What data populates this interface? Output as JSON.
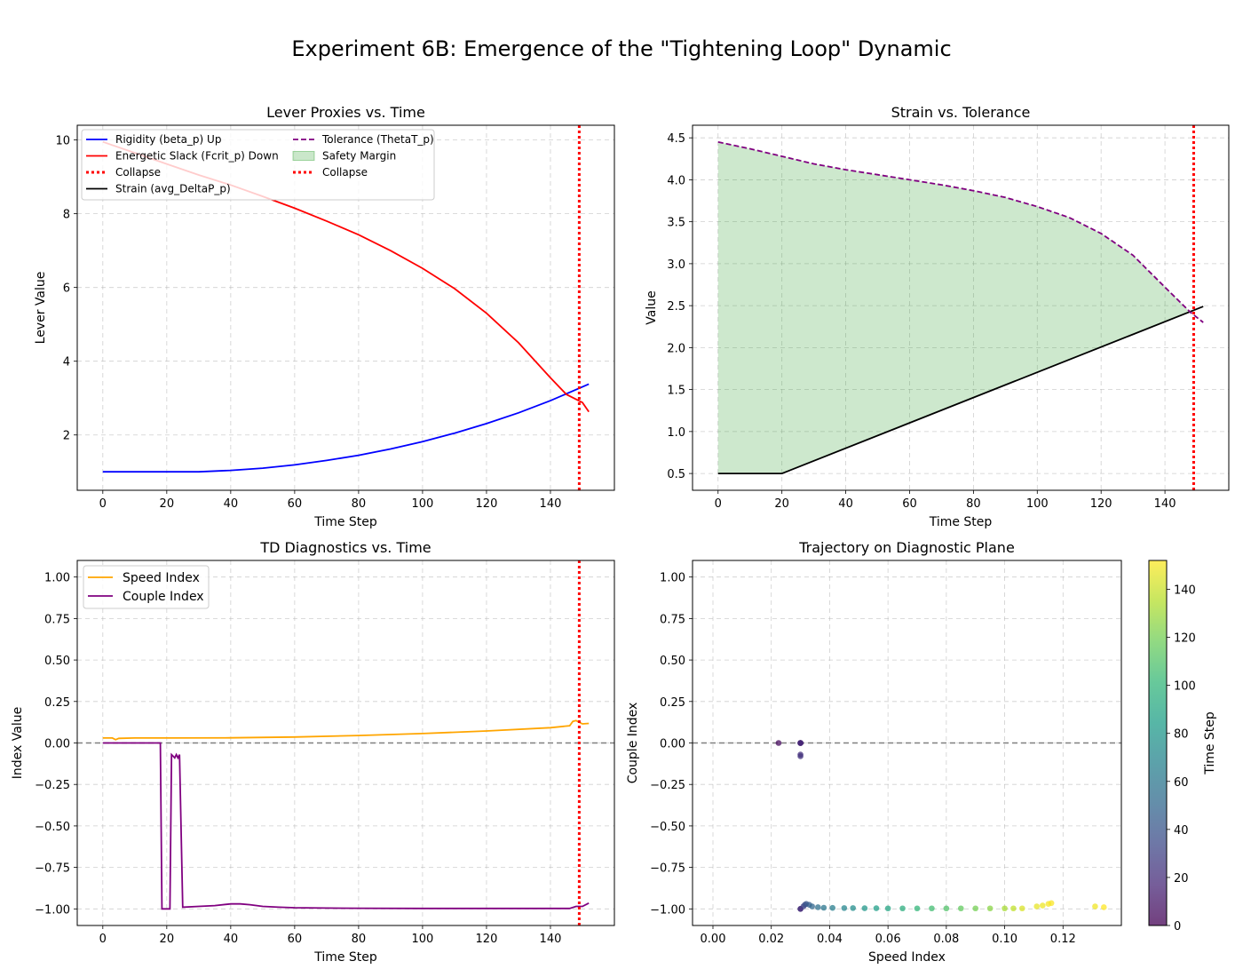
{
  "figure": {
    "title": "Experiment 6B: Emergence of the \"Tightening Loop\" Dynamic"
  },
  "colors": {
    "rigidity": "#0000ff",
    "slack": "#ff0000",
    "collapse": "#ff0000",
    "strain": "#000000",
    "tolerance": "#800080",
    "safety_margin": "#2ca02c",
    "speed": "#ffa500",
    "couple": "#800080",
    "zero_line": "#808080"
  },
  "chart_data": [
    {
      "id": "levers",
      "type": "line",
      "title": "Lever Proxies vs. Time",
      "xlabel": "Time Step",
      "ylabel": "Lever Value",
      "xlim": [
        -8,
        160
      ],
      "ylim": [
        0.5,
        10.4
      ],
      "xticks": [
        0,
        20,
        40,
        60,
        80,
        100,
        120,
        140
      ],
      "yticks": [
        2,
        4,
        6,
        8,
        10
      ],
      "grid": true,
      "legend_position": "top-left",
      "legend": [
        "Rigidity (beta_p) Up",
        "Energetic Slack (Fcrit_p) Down",
        "Collapse",
        "Strain (avg_DeltaP_p)",
        "Tolerance (ThetaT_p)",
        "Safety Margin",
        "Collapse"
      ],
      "collapse_x": 149,
      "series": [
        {
          "name": "Rigidity (beta_p) Up",
          "color_key": "rigidity",
          "x": [
            0,
            10,
            20,
            30,
            40,
            50,
            60,
            70,
            80,
            90,
            100,
            110,
            120,
            130,
            140,
            152
          ],
          "y": [
            1.0,
            1.0,
            1.0,
            1.0,
            1.04,
            1.1,
            1.19,
            1.31,
            1.45,
            1.62,
            1.82,
            2.05,
            2.31,
            2.6,
            2.93,
            3.38
          ]
        },
        {
          "name": "Energetic Slack (Fcrit_p) Down",
          "color_key": "slack",
          "x": [
            0,
            10,
            20,
            30,
            40,
            50,
            60,
            70,
            80,
            90,
            100,
            110,
            120,
            130,
            140,
            145,
            150,
            152
          ],
          "y": [
            9.95,
            9.65,
            9.35,
            9.05,
            8.78,
            8.47,
            8.15,
            7.8,
            7.43,
            7.0,
            6.52,
            5.97,
            5.3,
            4.5,
            3.55,
            3.1,
            2.88,
            2.63
          ]
        }
      ]
    },
    {
      "id": "strain",
      "type": "line",
      "title": "Strain vs. Tolerance",
      "xlabel": "Time Step",
      "ylabel": "Value",
      "xlim": [
        -8,
        160
      ],
      "ylim": [
        0.3,
        4.65
      ],
      "xticks": [
        0,
        20,
        40,
        60,
        80,
        100,
        120,
        140
      ],
      "yticks": [
        0.5,
        1.0,
        1.5,
        2.0,
        2.5,
        3.0,
        3.5,
        4.0,
        4.5
      ],
      "grid": true,
      "collapse_x": 149,
      "series": [
        {
          "name": "Strain (avg_DeltaP_p)",
          "color_key": "strain",
          "x": [
            0,
            20,
            152
          ],
          "y": [
            0.5,
            0.5,
            2.49
          ]
        },
        {
          "name": "Tolerance (ThetaT_p)",
          "color_key": "tolerance",
          "x": [
            0,
            10,
            20,
            30,
            40,
            50,
            60,
            70,
            80,
            90,
            100,
            110,
            120,
            130,
            140,
            148,
            152
          ],
          "y": [
            4.45,
            4.37,
            4.28,
            4.19,
            4.12,
            4.06,
            4.0,
            3.94,
            3.87,
            3.79,
            3.68,
            3.55,
            3.36,
            3.1,
            2.72,
            2.42,
            2.3
          ]
        }
      ]
    },
    {
      "id": "td",
      "type": "line",
      "title": "TD Diagnostics vs. Time",
      "xlabel": "Time Step",
      "ylabel": "Index Value",
      "xlim": [
        -8,
        160
      ],
      "ylim": [
        -1.1,
        1.1
      ],
      "xticks": [
        0,
        20,
        40,
        60,
        80,
        100,
        120,
        140
      ],
      "yticks": [
        -1.0,
        -0.75,
        -0.5,
        -0.25,
        0.0,
        0.25,
        0.5,
        0.75,
        1.0
      ],
      "grid": true,
      "legend_position": "top-left",
      "legend": [
        "Speed Index",
        "Couple Index"
      ],
      "collapse_x": 149,
      "series": [
        {
          "name": "Speed Index",
          "color_key": "speed",
          "x": [
            0,
            3,
            4,
            5,
            10,
            20,
            40,
            60,
            80,
            100,
            120,
            140,
            146,
            147,
            148,
            150,
            152
          ],
          "y": [
            0.03,
            0.03,
            0.02,
            0.028,
            0.03,
            0.03,
            0.031,
            0.036,
            0.045,
            0.057,
            0.072,
            0.092,
            0.104,
            0.13,
            0.135,
            0.115,
            0.118
          ]
        },
        {
          "name": "Couple Index",
          "color_key": "couple",
          "x": [
            0,
            17,
            18,
            18.5,
            20,
            21,
            21.5,
            22,
            22.5,
            23,
            23.5,
            24,
            25,
            30,
            35,
            40,
            43,
            46,
            50,
            55,
            60,
            70,
            80,
            100,
            120,
            146,
            148,
            150,
            152
          ],
          "y": [
            0.0,
            0.0,
            0.0,
            -1.0,
            -1.0,
            -1.0,
            -0.07,
            -0.08,
            -0.09,
            -0.07,
            -0.09,
            -0.07,
            -0.99,
            -0.985,
            -0.98,
            -0.97,
            -0.97,
            -0.975,
            -0.985,
            -0.99,
            -0.993,
            -0.995,
            -0.996,
            -0.997,
            -0.997,
            -0.997,
            -0.985,
            -0.985,
            -0.965
          ]
        }
      ]
    },
    {
      "id": "traj",
      "type": "scatter",
      "title": "Trajectory on Diagnostic Plane",
      "xlabel": "Speed Index",
      "ylabel": "Couple Index",
      "xlim": [
        -0.007,
        0.14
      ],
      "ylim": [
        -1.1,
        1.1
      ],
      "xticks": [
        0.0,
        0.02,
        0.04,
        0.06,
        0.08,
        0.1,
        0.12
      ],
      "xtick_labels": [
        "0.00",
        "0.02",
        "0.04",
        "0.06",
        "0.08",
        "0.10",
        "0.12"
      ],
      "yticks": [
        -1.0,
        -0.75,
        -0.5,
        -0.25,
        0.0,
        0.25,
        0.5,
        0.75,
        1.0
      ],
      "grid": true,
      "colorbar": {
        "label": "Time Step",
        "range": [
          0,
          152
        ],
        "ticks": [
          0,
          20,
          40,
          60,
          80,
          100,
          120,
          140
        ],
        "colormap": "viridis"
      },
      "points": [
        [
          0.0225,
          0.0,
          4
        ],
        [
          0.03,
          0.0,
          2
        ],
        [
          0.03,
          0.0,
          8
        ],
        [
          0.03,
          0.0,
          14
        ],
        [
          0.03,
          0.0,
          18
        ],
        [
          0.03,
          -0.07,
          22
        ],
        [
          0.03,
          -0.08,
          23
        ],
        [
          0.03,
          -1.0,
          19
        ],
        [
          0.03,
          -1.0,
          20
        ],
        [
          0.031,
          -0.985,
          30
        ],
        [
          0.0315,
          -0.975,
          35
        ],
        [
          0.032,
          -0.97,
          40
        ],
        [
          0.033,
          -0.975,
          45
        ],
        [
          0.034,
          -0.985,
          50
        ],
        [
          0.036,
          -0.99,
          55
        ],
        [
          0.038,
          -0.993,
          60
        ],
        [
          0.041,
          -0.994,
          65
        ],
        [
          0.045,
          -0.995,
          70
        ],
        [
          0.048,
          -0.995,
          75
        ],
        [
          0.052,
          -0.996,
          80
        ],
        [
          0.056,
          -0.996,
          85
        ],
        [
          0.06,
          -0.997,
          90
        ],
        [
          0.065,
          -0.997,
          95
        ],
        [
          0.07,
          -0.997,
          100
        ],
        [
          0.075,
          -0.997,
          105
        ],
        [
          0.08,
          -0.997,
          110
        ],
        [
          0.085,
          -0.997,
          115
        ],
        [
          0.09,
          -0.997,
          120
        ],
        [
          0.095,
          -0.997,
          125
        ],
        [
          0.1,
          -0.997,
          132
        ],
        [
          0.103,
          -0.997,
          138
        ],
        [
          0.106,
          -0.997,
          144
        ],
        [
          0.111,
          -0.985,
          147
        ],
        [
          0.113,
          -0.98,
          148
        ],
        [
          0.115,
          -0.97,
          150
        ],
        [
          0.116,
          -0.965,
          151
        ],
        [
          0.131,
          -0.985,
          149
        ],
        [
          0.134,
          -0.99,
          152
        ]
      ]
    }
  ]
}
